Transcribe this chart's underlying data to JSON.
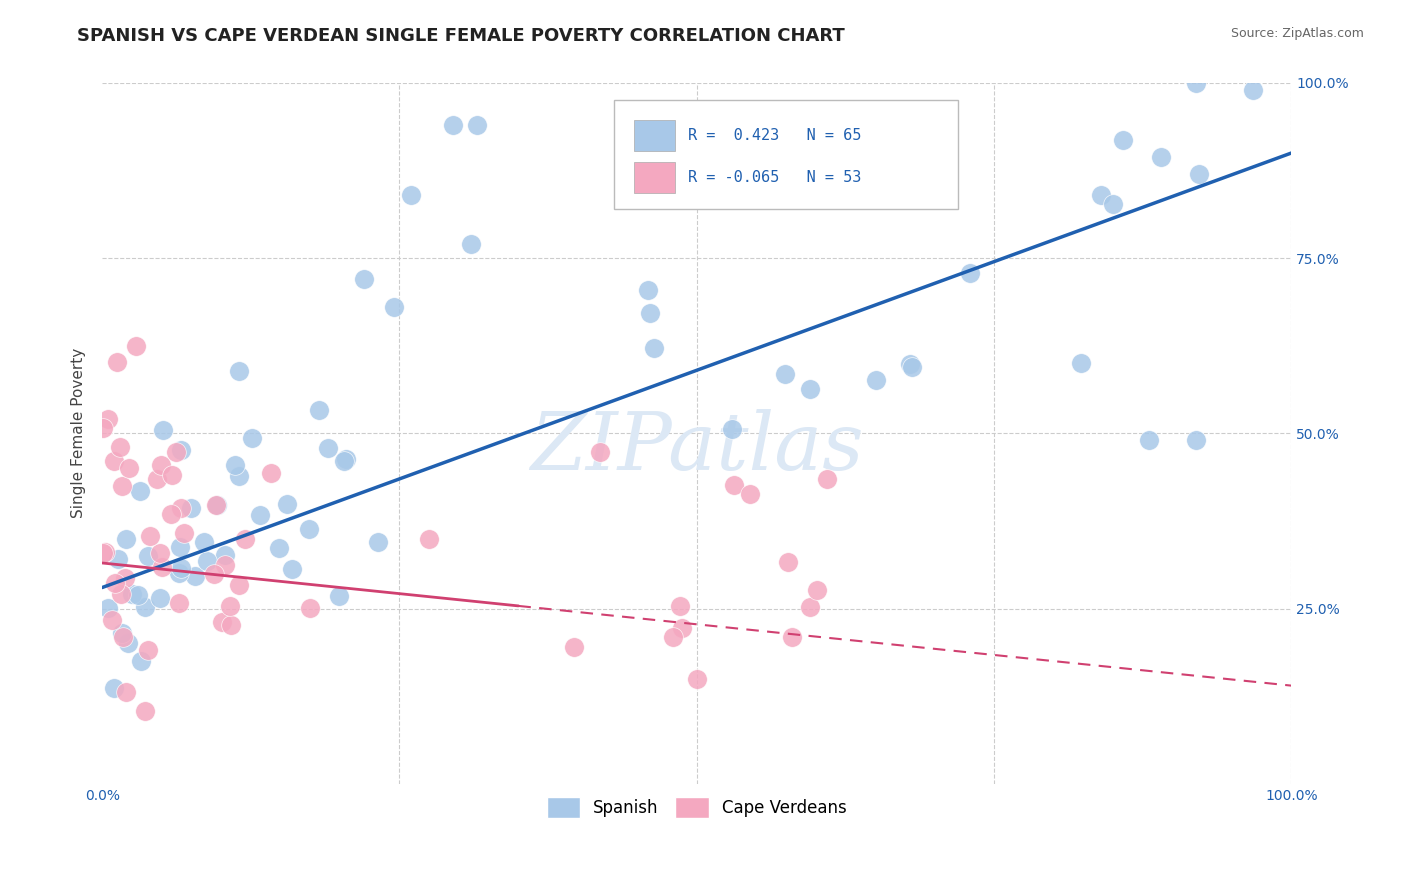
{
  "title": "SPANISH VS CAPE VERDEAN SINGLE FEMALE POVERTY CORRELATION CHART",
  "source_text": "Source: ZipAtlas.com",
  "ylabel": "Single Female Poverty",
  "blue_color": "#a8c8e8",
  "pink_color": "#f4a8c0",
  "blue_line_color": "#2060b0",
  "pink_line_color": "#d04070",
  "watermark_text": "ZIPatlas",
  "watermark_color": "#dce8f5",
  "title_fontsize": 13,
  "axis_label_fontsize": 11,
  "tick_fontsize": 10,
  "blue_R": 0.423,
  "blue_N": 65,
  "pink_R": -0.065,
  "pink_N": 53,
  "right_ytick_color": "#2060b0",
  "bottom_xtick_color": "#2060b0"
}
